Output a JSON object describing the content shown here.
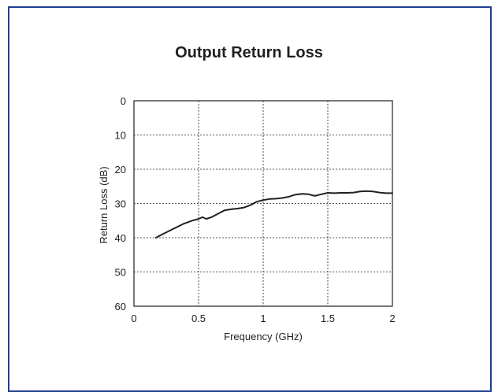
{
  "chart_data": {
    "type": "line",
    "title": "Output Return Loss",
    "xlabel": "Frequency (GHz)",
    "ylabel": "Return Loss (dB)",
    "xlim": [
      0,
      2
    ],
    "ylim": [
      0,
      60
    ],
    "y_inverted": true,
    "grid": true,
    "grid_style": "dashed",
    "x_ticks": [
      "0",
      "0.5",
      "1",
      "1.5",
      "2"
    ],
    "x_tick_values": [
      0,
      0.5,
      1,
      1.5,
      2
    ],
    "y_ticks": [
      "0",
      "10",
      "20",
      "30",
      "40",
      "50",
      "60"
    ],
    "y_tick_values": [
      0,
      10,
      20,
      30,
      40,
      50,
      60
    ],
    "line_color": "#231f20",
    "frame_color": "#1f3f8f",
    "series": [
      {
        "x": [
          0.17,
          0.22,
          0.3,
          0.38,
          0.45,
          0.5,
          0.53,
          0.56,
          0.6,
          0.65,
          0.7,
          0.75,
          0.8,
          0.85,
          0.9,
          0.95,
          1.0,
          1.05,
          1.1,
          1.15,
          1.2,
          1.25,
          1.3,
          1.35,
          1.4,
          1.45,
          1.5,
          1.55,
          1.6,
          1.65,
          1.7,
          1.75,
          1.8,
          1.85,
          1.9,
          1.95,
          2.0
        ],
        "y": [
          40.0,
          39.0,
          37.5,
          36.0,
          35.0,
          34.5,
          34.0,
          34.5,
          34.0,
          33.0,
          32.0,
          31.7,
          31.5,
          31.2,
          30.5,
          29.5,
          29.0,
          28.7,
          28.6,
          28.4,
          28.0,
          27.4,
          27.2,
          27.3,
          27.8,
          27.3,
          26.9,
          27.0,
          26.9,
          26.9,
          26.8,
          26.5,
          26.4,
          26.5,
          26.8,
          27.0,
          27.0
        ]
      }
    ]
  }
}
